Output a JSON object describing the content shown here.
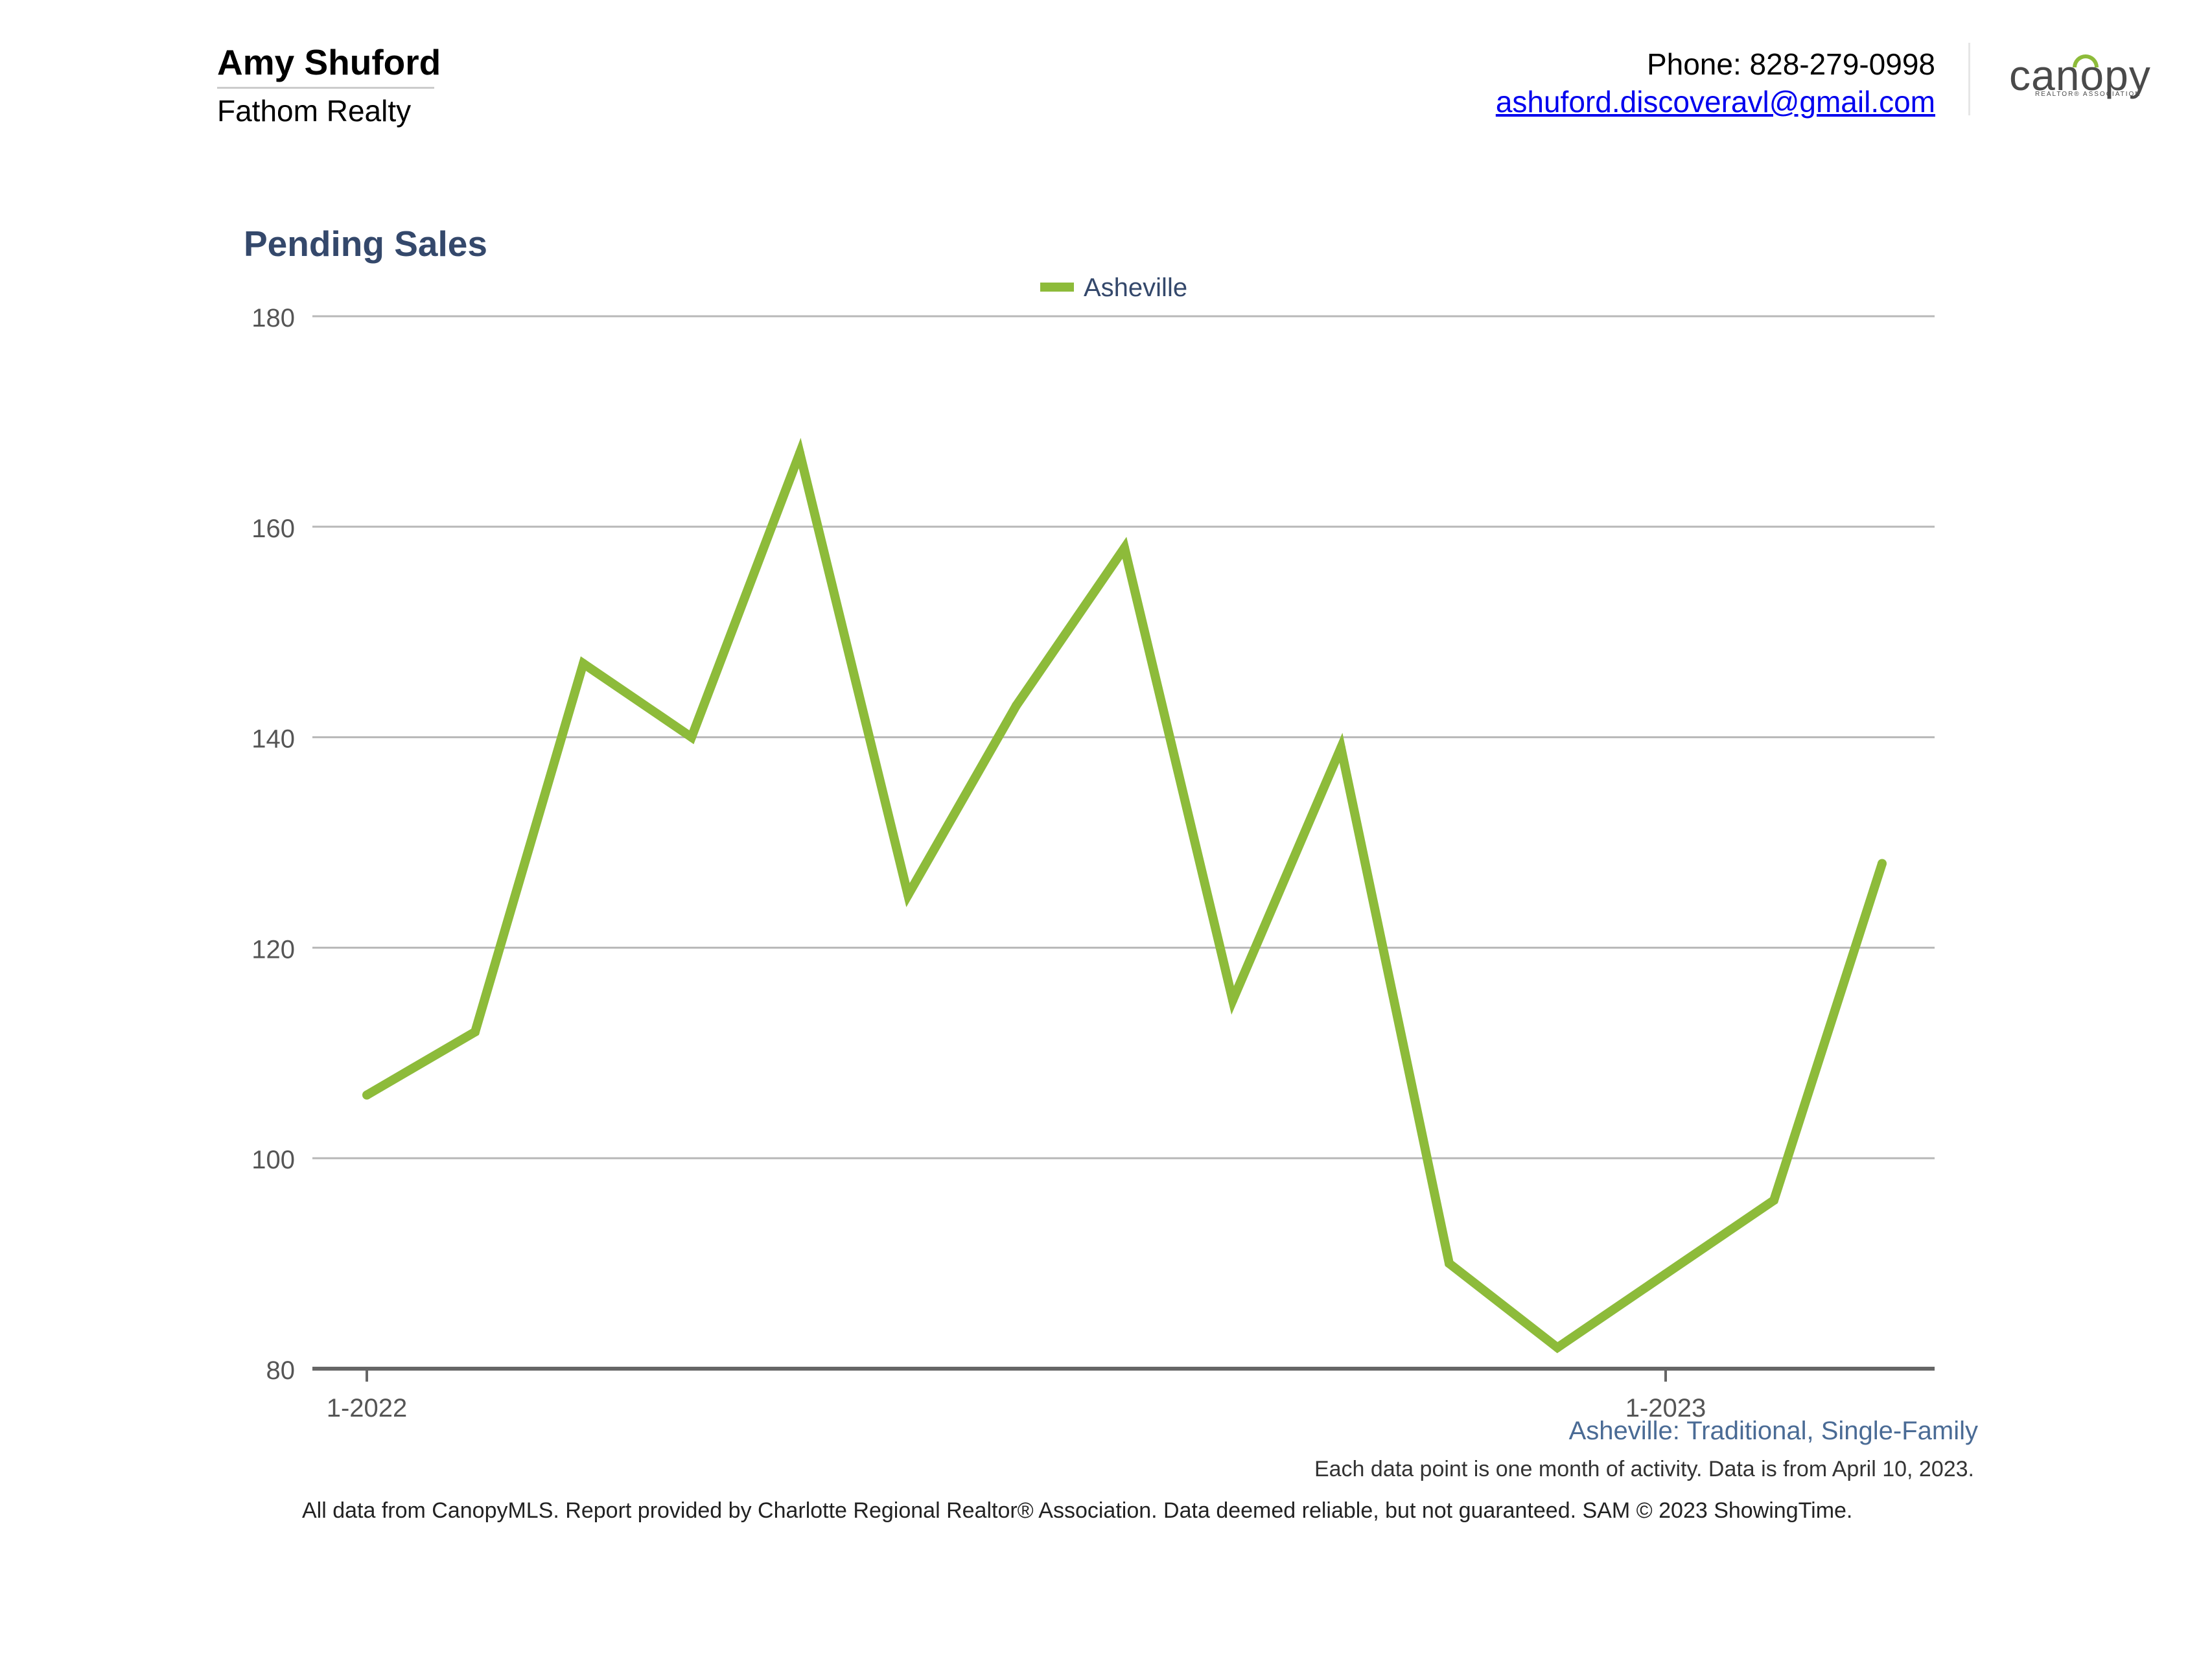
{
  "agent": {
    "name": "Amy Shuford",
    "company": "Fathom Realty"
  },
  "contact": {
    "phone": "Phone: 828-279-0998",
    "email": "ashuford.discoveravl@gmail.com"
  },
  "logo": {
    "text": "canopy",
    "subtext": "REALTOR® ASSOCIATION",
    "accent_color": "#8dbb3a"
  },
  "chart_data": {
    "type": "line",
    "title": "Pending Sales",
    "legend": "top-center",
    "grid": true,
    "x_tick_labels": [
      "1-2022",
      "1-2023"
    ],
    "y_ticks": [
      80,
      100,
      120,
      140,
      160,
      180
    ],
    "ylim": [
      80,
      180
    ],
    "x": [
      "1-2022",
      "2-2022",
      "3-2022",
      "4-2022",
      "5-2022",
      "6-2022",
      "7-2022",
      "8-2022",
      "9-2022",
      "10-2022",
      "11-2022",
      "12-2022",
      "1-2023",
      "2-2023",
      "3-2023"
    ],
    "series": [
      {
        "name": "Asheville",
        "color": "#8dbb3a",
        "values": [
          106,
          112,
          147,
          140,
          167,
          125,
          143,
          158,
          115,
          139,
          90,
          82,
          89,
          96,
          128
        ]
      }
    ]
  },
  "notes": {
    "subtitle": "Asheville: Traditional, Single-Family",
    "data_note": "Each data point is one month of activity. Data is from April 10, 2023.",
    "disclaimer": "All data from CanopyMLS. Report provided by Charlotte Regional Realtor® Association. Data deemed reliable, but not guaranteed. SAM © 2023 ShowingTime."
  }
}
